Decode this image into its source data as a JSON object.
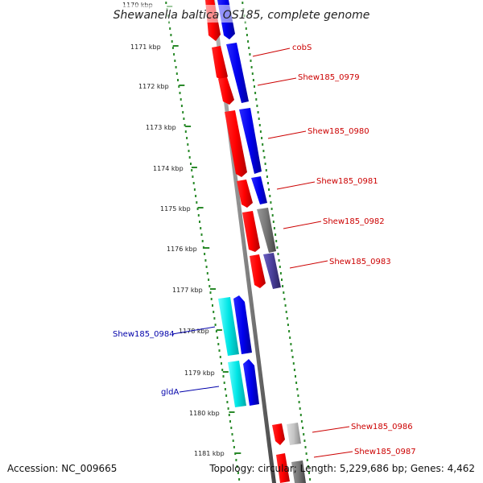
{
  "title": "Shewanella baltica OS185, complete genome",
  "accession": "Accession: NC_009665",
  "topology": "Topology: circular; Length: 5,229,686 bp; Genes: 4,462",
  "kbp_ticks": [
    "1170 kbp",
    "1171 kbp",
    "1172 kbp",
    "1173 kbp",
    "1174 kbp",
    "1175 kbp",
    "1176 kbp",
    "1177 kbp",
    "1178 kbp",
    "1179 kbp",
    "1180 kbp",
    "1181 kbp"
  ],
  "gene_labels_right": [
    "cobS",
    "Shew185_0979",
    "Shew185_0980",
    "Shew185_0981",
    "Shew185_0982",
    "Shew185_0983",
    "Shew185_0986",
    "Shew185_0987"
  ],
  "gene_labels_left": [
    "Shew185_0984",
    "gldA"
  ],
  "colors": {
    "red": "#ff0000",
    "blue": "#0000ee",
    "cyan": "#00e5e5",
    "gray": "#777777",
    "slate": "#4a3f9a",
    "backbone": "#888888",
    "tick_green": "#2a8a2a",
    "label_red": "#cc0000",
    "label_blue": "#0000aa"
  }
}
